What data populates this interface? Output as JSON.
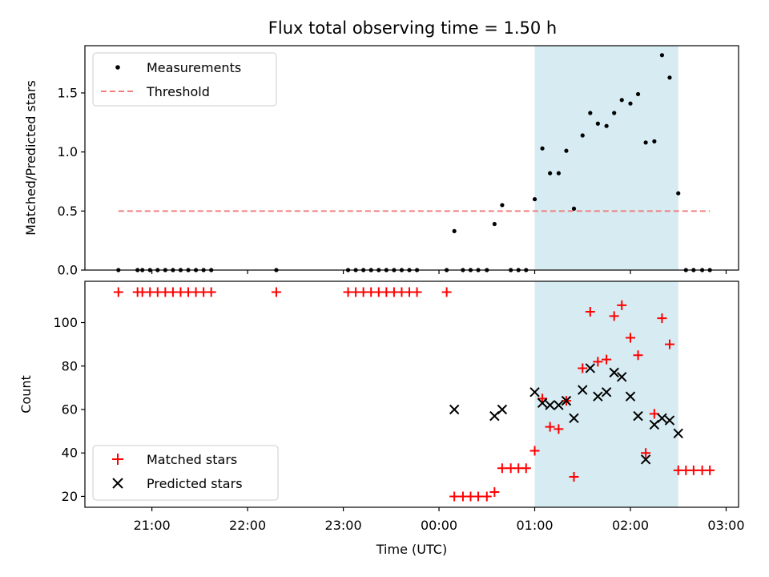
{
  "chart_data": {
    "type": "scatter",
    "title": "Flux total observing time = 1.50 h",
    "xlabel": "Time (UTC)",
    "x_ticks": [
      "21:00",
      "22:00",
      "23:00",
      "00:00",
      "01:00",
      "02:00",
      "03:00"
    ],
    "x_tick_hours": [
      21,
      22,
      23,
      24,
      25,
      26,
      27
    ],
    "xlim_hours": [
      20.3,
      27.13
    ],
    "highlight_span_hours": [
      25.0,
      26.5
    ],
    "colors": {
      "measurements": "#000000",
      "threshold": "#f08080",
      "matched": "#ff0000",
      "predicted": "#000000",
      "span": "#add8e6"
    },
    "panels": [
      {
        "name": "ratio",
        "ylabel": "Matched/Predicted stars",
        "ylim": [
          0,
          1.9
        ],
        "y_ticks": [
          "0.0",
          "0.5",
          "1.0",
          "1.5"
        ],
        "y_tick_values": [
          0,
          0.5,
          1.0,
          1.5
        ],
        "legend": {
          "placement": "upper-left",
          "entries": [
            "Measurements",
            "Threshold"
          ]
        },
        "threshold": {
          "name": "Threshold",
          "value": 0.5,
          "x_range_hours": [
            20.65,
            26.83
          ]
        },
        "series": [
          {
            "name": "Measurements",
            "marker": "dot",
            "points": [
              [
                20.65,
                0
              ],
              [
                20.85,
                0
              ],
              [
                20.9,
                0
              ],
              [
                20.98,
                0
              ],
              [
                21.06,
                0
              ],
              [
                21.14,
                0
              ],
              [
                21.22,
                0
              ],
              [
                21.3,
                0
              ],
              [
                21.38,
                0
              ],
              [
                21.46,
                0
              ],
              [
                21.54,
                0
              ],
              [
                21.62,
                0
              ],
              [
                22.3,
                0
              ],
              [
                23.05,
                0
              ],
              [
                23.13,
                0
              ],
              [
                23.21,
                0
              ],
              [
                23.29,
                0
              ],
              [
                23.37,
                0
              ],
              [
                23.45,
                0
              ],
              [
                23.53,
                0
              ],
              [
                23.61,
                0
              ],
              [
                23.69,
                0
              ],
              [
                23.77,
                0
              ],
              [
                24.08,
                0
              ],
              [
                24.16,
                0.33
              ],
              [
                24.25,
                0
              ],
              [
                24.33,
                0
              ],
              [
                24.41,
                0
              ],
              [
                24.5,
                0
              ],
              [
                24.58,
                0.39
              ],
              [
                24.66,
                0.55
              ],
              [
                24.75,
                0
              ],
              [
                24.83,
                0
              ],
              [
                24.91,
                0
              ],
              [
                25.0,
                0.6
              ],
              [
                25.08,
                1.03
              ],
              [
                25.16,
                0.82
              ],
              [
                25.25,
                0.82
              ],
              [
                25.33,
                1.01
              ],
              [
                25.41,
                0.52
              ],
              [
                25.5,
                1.14
              ],
              [
                25.58,
                1.33
              ],
              [
                25.66,
                1.24
              ],
              [
                25.75,
                1.22
              ],
              [
                25.83,
                1.33
              ],
              [
                25.91,
                1.44
              ],
              [
                26.0,
                1.41
              ],
              [
                26.08,
                1.49
              ],
              [
                26.16,
                1.08
              ],
              [
                26.25,
                1.09
              ],
              [
                26.33,
                1.82
              ],
              [
                26.41,
                1.63
              ],
              [
                26.5,
                0.65
              ],
              [
                26.58,
                0
              ],
              [
                26.66,
                0
              ],
              [
                26.75,
                0
              ],
              [
                26.83,
                0
              ]
            ]
          }
        ]
      },
      {
        "name": "counts",
        "ylabel": "Count",
        "ylim": [
          15,
          119
        ],
        "y_ticks": [
          "20",
          "40",
          "60",
          "80",
          "100"
        ],
        "y_tick_values": [
          20,
          40,
          60,
          80,
          100
        ],
        "legend": {
          "placement": "lower-left",
          "entries": [
            "Matched stars",
            "Predicted stars"
          ]
        },
        "series": [
          {
            "name": "Matched stars",
            "marker": "plus",
            "points": [
              [
                20.65,
                114
              ],
              [
                20.85,
                114
              ],
              [
                20.9,
                114
              ],
              [
                20.98,
                114
              ],
              [
                21.06,
                114
              ],
              [
                21.14,
                114
              ],
              [
                21.22,
                114
              ],
              [
                21.3,
                114
              ],
              [
                21.38,
                114
              ],
              [
                21.46,
                114
              ],
              [
                21.54,
                114
              ],
              [
                21.62,
                114
              ],
              [
                22.3,
                114
              ],
              [
                23.05,
                114
              ],
              [
                23.13,
                114
              ],
              [
                23.21,
                114
              ],
              [
                23.29,
                114
              ],
              [
                23.37,
                114
              ],
              [
                23.45,
                114
              ],
              [
                23.53,
                114
              ],
              [
                23.61,
                114
              ],
              [
                23.69,
                114
              ],
              [
                23.77,
                114
              ],
              [
                24.08,
                114
              ],
              [
                24.16,
                20
              ],
              [
                24.25,
                20
              ],
              [
                24.33,
                20
              ],
              [
                24.41,
                20
              ],
              [
                24.5,
                20
              ],
              [
                24.58,
                22
              ],
              [
                24.66,
                33
              ],
              [
                24.75,
                33
              ],
              [
                24.83,
                33
              ],
              [
                24.91,
                33
              ],
              [
                25.0,
                41
              ],
              [
                25.08,
                65
              ],
              [
                25.16,
                52
              ],
              [
                25.25,
                51
              ],
              [
                25.33,
                64
              ],
              [
                25.41,
                29
              ],
              [
                25.5,
                79
              ],
              [
                25.58,
                105
              ],
              [
                25.66,
                82
              ],
              [
                25.75,
                83
              ],
              [
                25.83,
                103
              ],
              [
                25.91,
                108
              ],
              [
                26.0,
                93
              ],
              [
                26.08,
                85
              ],
              [
                26.16,
                40
              ],
              [
                26.25,
                58
              ],
              [
                26.33,
                102
              ],
              [
                26.41,
                90
              ],
              [
                26.5,
                32
              ],
              [
                26.58,
                32
              ],
              [
                26.66,
                32
              ],
              [
                26.75,
                32
              ],
              [
                26.83,
                32
              ]
            ]
          },
          {
            "name": "Predicted stars",
            "marker": "x",
            "points": [
              [
                24.16,
                60
              ],
              [
                24.58,
                57
              ],
              [
                24.66,
                60
              ],
              [
                25.0,
                68
              ],
              [
                25.08,
                63
              ],
              [
                25.16,
                62
              ],
              [
                25.25,
                62
              ],
              [
                25.33,
                64
              ],
              [
                25.41,
                56
              ],
              [
                25.5,
                69
              ],
              [
                25.58,
                79
              ],
              [
                25.66,
                66
              ],
              [
                25.75,
                68
              ],
              [
                25.83,
                77
              ],
              [
                25.91,
                75
              ],
              [
                26.0,
                66
              ],
              [
                26.08,
                57
              ],
              [
                26.16,
                37
              ],
              [
                26.25,
                53
              ],
              [
                26.33,
                56
              ],
              [
                26.41,
                55
              ],
              [
                26.5,
                49
              ]
            ]
          }
        ]
      }
    ]
  }
}
